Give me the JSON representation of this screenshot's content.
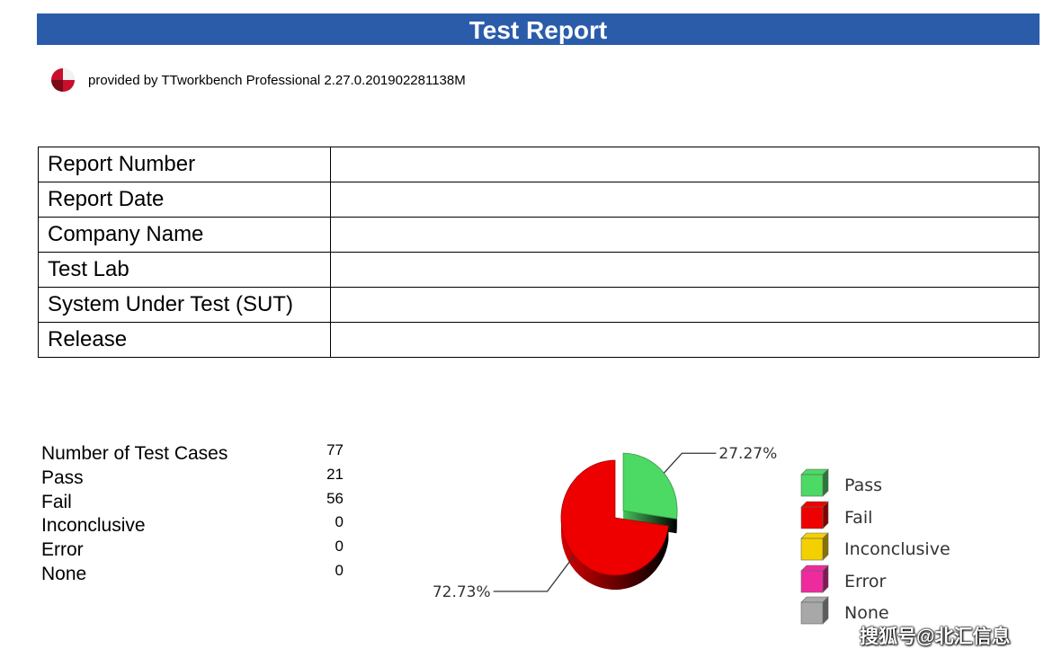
{
  "header": {
    "title": "Test Report"
  },
  "provider": {
    "text": "provided by TTworkbench Professional 2.27.0.201902281138M",
    "logo_icon": "ttworkbench-logo-icon"
  },
  "info_table": [
    {
      "label": "Report Number",
      "value": ""
    },
    {
      "label": "Report Date",
      "value": ""
    },
    {
      "label": "Company Name",
      "value": ""
    },
    {
      "label": "Test Lab",
      "value": ""
    },
    {
      "label": "System Under Test (SUT)",
      "value": ""
    },
    {
      "label": "Release",
      "value": ""
    }
  ],
  "stats": [
    {
      "label": "Number of Test Cases",
      "value": "77"
    },
    {
      "label": "Pass",
      "value": "21"
    },
    {
      "label": "Fail",
      "value": "56"
    },
    {
      "label": "Inconclusive",
      "value": "0"
    },
    {
      "label": "Error",
      "value": "0"
    },
    {
      "label": "None",
      "value": "0"
    }
  ],
  "chart_data": {
    "type": "pie",
    "slices": [
      {
        "name": "Pass",
        "value": 21,
        "label": "27.27%",
        "color": "#4cd964"
      },
      {
        "name": "Fail",
        "value": 56,
        "label": "72.73%",
        "color": "#ee0000"
      }
    ],
    "legend": [
      {
        "name": "Pass",
        "color": "#4cd964"
      },
      {
        "name": "Fail",
        "color": "#ee0000"
      },
      {
        "name": "Inconclusive",
        "color": "#f5d000"
      },
      {
        "name": "Error",
        "color": "#ee2a9e"
      },
      {
        "name": "None",
        "color": "#a8a8a8"
      }
    ],
    "legend_position": "right"
  },
  "watermark": "搜狐号@北汇信息"
}
